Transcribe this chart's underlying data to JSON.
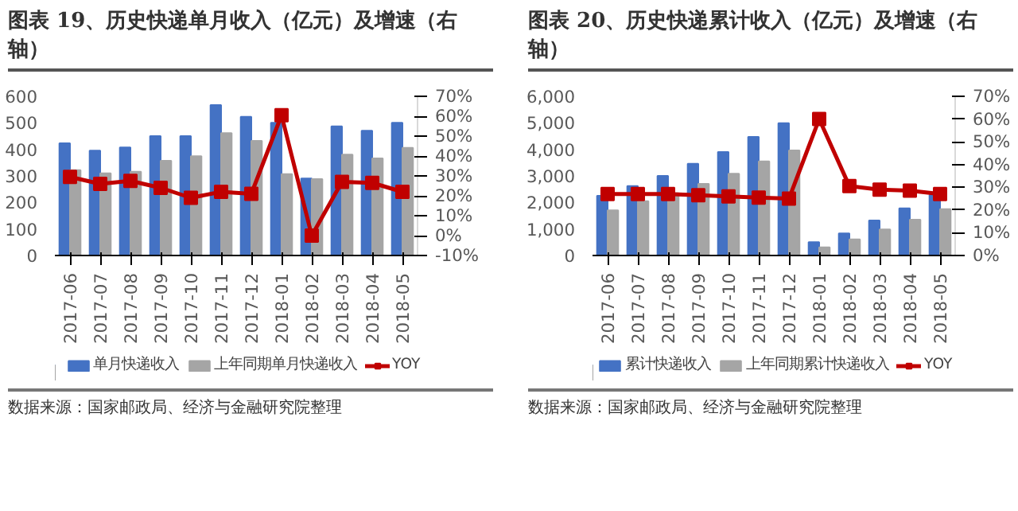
{
  "chart_data": [
    {
      "type": "bar",
      "title": "图表 19、历史快递单月收入（亿元）及增速（右轴）",
      "categories": [
        "2017-06",
        "2017-07",
        "2017-08",
        "2017-09",
        "2017-10",
        "2017-11",
        "2017-12",
        "2018-01",
        "2018-02",
        "2018-03",
        "2018-04",
        "2018-05"
      ],
      "series": [
        {
          "name": "单月快递收入",
          "color": "#4472c4",
          "values": [
            423,
            395,
            407,
            450,
            450,
            567,
            523,
            500,
            290,
            487,
            470,
            500
          ]
        },
        {
          "name": "上年同期单月快递收入",
          "color": "#a5a5a5",
          "values": [
            322,
            310,
            316,
            357,
            374,
            461,
            432,
            307,
            288,
            380,
            366,
            406
          ]
        },
        {
          "name": "YOY",
          "type": "line",
          "axis": "y2",
          "color": "#c00000",
          "marker": "square",
          "values": [
            29.5,
            26,
            27.5,
            24,
            19,
            22,
            21,
            60.5,
            0,
            27,
            26.5,
            22
          ]
        }
      ],
      "ylim": [
        0,
        600
      ],
      "yticks": [
        0,
        100,
        200,
        300,
        400,
        500,
        600
      ],
      "y2lim": [
        -10,
        70
      ],
      "y2ticks": [
        {
          "value": -10,
          "label": "-10%"
        },
        {
          "value": 0,
          "label": "0%"
        },
        {
          "value": 10,
          "label": "10%"
        },
        {
          "value": 20,
          "label": "20%"
        },
        {
          "value": 30,
          "label": "30%"
        },
        {
          "value": 40,
          "label": "40%"
        },
        {
          "value": 50,
          "label": "50%"
        },
        {
          "value": 60,
          "label": "60%"
        },
        {
          "value": 70,
          "label": "70%"
        }
      ],
      "legend": "bottom",
      "annotations": [
        "数据来源：国家邮政局、经济与金融研究院整理"
      ]
    },
    {
      "type": "bar",
      "title": "图表 20、历史快递累计收入（亿元）及增速（右轴）",
      "categories": [
        "2017-06",
        "2017-07",
        "2017-08",
        "2017-09",
        "2017-10",
        "2017-11",
        "2017-12",
        "2018-01",
        "2018-02",
        "2018-03",
        "2018-04",
        "2018-05"
      ],
      "series": [
        {
          "name": "累计快递收入",
          "color": "#4472c4",
          "values": [
            2250,
            2620,
            3000,
            3460,
            3900,
            4470,
            4990,
            500,
            830,
            1320,
            1780,
            2280
          ]
        },
        {
          "name": "上年同期累计快递收入",
          "color": "#a5a5a5",
          "values": [
            1700,
            2050,
            2350,
            2700,
            3080,
            3550,
            3960,
            310,
            610,
            980,
            1350,
            1750
          ]
        },
        {
          "name": "YOY",
          "type": "line",
          "axis": "y2",
          "color": "#c00000",
          "marker": "square",
          "values": [
            27,
            27,
            27,
            26.5,
            26,
            25.5,
            25,
            60,
            30.5,
            29,
            28.5,
            27
          ]
        }
      ],
      "ylim": [
        0,
        6000
      ],
      "yticks": [
        {
          "value": 0,
          "label": "0"
        },
        {
          "value": 1000,
          "label": "1,000"
        },
        {
          "value": 2000,
          "label": "2,000"
        },
        {
          "value": 3000,
          "label": "3,000"
        },
        {
          "value": 4000,
          "label": "4,000"
        },
        {
          "value": 5000,
          "label": "5,000"
        },
        {
          "value": 6000,
          "label": "6,000"
        }
      ],
      "y2lim": [
        0,
        70
      ],
      "y2ticks": [
        {
          "value": 0,
          "label": "0%"
        },
        {
          "value": 10,
          "label": "10%"
        },
        {
          "value": 20,
          "label": "20%"
        },
        {
          "value": 30,
          "label": "30%"
        },
        {
          "value": 40,
          "label": "40%"
        },
        {
          "value": 50,
          "label": "50%"
        },
        {
          "value": 60,
          "label": "60%"
        },
        {
          "value": 70,
          "label": "70%"
        }
      ],
      "legend": "bottom",
      "annotations": [
        "数据来源：国家邮政局、经济与金融研究院整理"
      ]
    }
  ]
}
